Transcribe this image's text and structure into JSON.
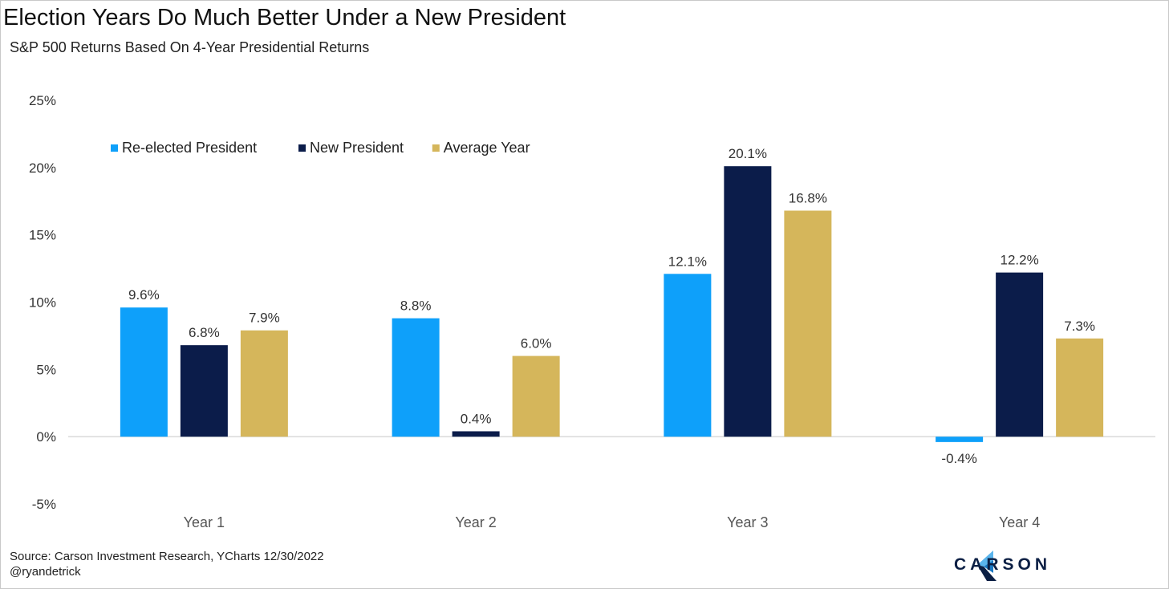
{
  "title": "Election Years Do Much Better Under a New President",
  "subtitle": "S&P 500 Returns Based On 4-Year Presidential Returns",
  "footer": {
    "source": "Source: Carson Investment Research, YCharts 12/30/2022",
    "handle": "@ryandetrick"
  },
  "logo": {
    "text": "CARSON",
    "icon": "carson-chevron-logo"
  },
  "colors": {
    "reelected": "#0ea0fa",
    "new": "#0b1c4a",
    "average": "#d5b65b",
    "gridline": "#d9d9d9"
  },
  "chart_data": {
    "type": "bar",
    "title": "Election Years Do Much Better Under a New President",
    "subtitle": "S&P 500 Returns Based On 4-Year Presidential Returns",
    "categories": [
      "Year 1",
      "Year 2",
      "Year 3",
      "Year 4"
    ],
    "series": [
      {
        "name": "Re-elected President",
        "values": [
          9.6,
          8.8,
          12.1,
          -0.4
        ],
        "labels": [
          "9.6%",
          "8.8%",
          "12.1%",
          "-0.4%"
        ]
      },
      {
        "name": "New President",
        "values": [
          6.8,
          0.4,
          20.1,
          12.2
        ],
        "labels": [
          "6.8%",
          "0.4%",
          "20.1%",
          "12.2%"
        ]
      },
      {
        "name": "Average Year",
        "values": [
          7.9,
          6.0,
          16.8,
          7.3
        ],
        "labels": [
          "7.9%",
          "6.0%",
          "16.8%",
          "7.3%"
        ]
      }
    ],
    "ylim": [
      -5,
      25
    ],
    "yticks": [
      25,
      20,
      15,
      10,
      5,
      0,
      -5
    ],
    "ytick_labels": [
      "25%",
      "20%",
      "15%",
      "10%",
      "5%",
      "0%",
      "-5%"
    ],
    "xlabel": "",
    "ylabel": "",
    "grid": false,
    "legend_position": "top-left"
  }
}
